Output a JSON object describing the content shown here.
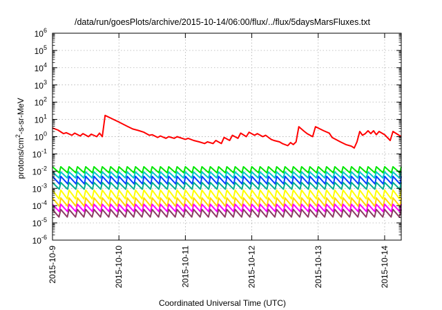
{
  "chart_data": {
    "type": "line",
    "title": "/data/run/goesPlots/archive/2015-10-14/06:00/flux/../flux/5daysMarsFluxes.txt",
    "xlabel": "Coordinated Universal Time (UTC)",
    "ylabel": {
      "prefix": "protons/cm",
      "sup": "2",
      "suffix": "-s-sr-MeV"
    },
    "x_type": "date",
    "xlim": [
      "2015-10-09T00:00",
      "2015-10-14T06:00"
    ],
    "x_ticks": [
      "2015-10-9",
      "2015-10-10",
      "2015-10-11",
      "2015-10-12",
      "2015-10-13",
      "2015-10-14"
    ],
    "y_scale": "log",
    "ylim": [
      1e-06,
      1000000.0
    ],
    "y_ticks": [
      {
        "base": "10",
        "exp": "6"
      },
      {
        "base": "10",
        "exp": "5"
      },
      {
        "base": "10",
        "exp": "4"
      },
      {
        "base": "10",
        "exp": "3"
      },
      {
        "base": "10",
        "exp": "2"
      },
      {
        "base": "10",
        "exp": "1"
      },
      {
        "base": "10",
        "exp": "0"
      },
      {
        "base": "10",
        "exp": "-1"
      },
      {
        "base": "10",
        "exp": "-2"
      },
      {
        "base": "10",
        "exp": "-3"
      },
      {
        "base": "10",
        "exp": "-4"
      },
      {
        "base": "10",
        "exp": "-5"
      },
      {
        "base": "10",
        "exp": "-6"
      }
    ],
    "grid": true,
    "series": [
      {
        "color": "#ff0000",
        "points": [
          [
            "2015-10-09T00:00",
            3.2
          ],
          [
            "2015-10-09T02:00",
            2.4
          ],
          [
            "2015-10-09T04:00",
            1.5
          ],
          [
            "2015-10-09T05:00",
            1.7
          ],
          [
            "2015-10-09T07:00",
            1.2
          ],
          [
            "2015-10-09T08:00",
            1.6
          ],
          [
            "2015-10-09T10:00",
            1.1
          ],
          [
            "2015-10-09T11:00",
            1.5
          ],
          [
            "2015-10-09T13:00",
            1.0
          ],
          [
            "2015-10-09T14:00",
            1.4
          ],
          [
            "2015-10-09T16:00",
            1.0
          ],
          [
            "2015-10-09T17:00",
            1.6
          ],
          [
            "2015-10-09T18:00",
            1.0
          ],
          [
            "2015-10-09T19:00",
            17.0
          ],
          [
            "2015-10-09T21:00",
            12.0
          ],
          [
            "2015-10-10T00:00",
            7.0
          ],
          [
            "2015-10-10T03:00",
            4.0
          ],
          [
            "2015-10-10T05:00",
            2.8
          ],
          [
            "2015-10-10T07:00",
            2.3
          ],
          [
            "2015-10-10T09:00",
            1.8
          ],
          [
            "2015-10-10T11:00",
            1.2
          ],
          [
            "2015-10-10T12:00",
            1.3
          ],
          [
            "2015-10-10T14:00",
            0.9
          ],
          [
            "2015-10-10T15:00",
            1.1
          ],
          [
            "2015-10-10T17:00",
            0.8
          ],
          [
            "2015-10-10T18:00",
            1.0
          ],
          [
            "2015-10-10T20:00",
            0.8
          ],
          [
            "2015-10-10T21:00",
            1.0
          ],
          [
            "2015-10-11T00:00",
            0.7
          ],
          [
            "2015-10-11T01:00",
            0.8
          ],
          [
            "2015-10-11T03:00",
            0.6
          ],
          [
            "2015-10-11T05:00",
            0.5
          ],
          [
            "2015-10-11T07:00",
            0.4
          ],
          [
            "2015-10-11T08:00",
            0.5
          ],
          [
            "2015-10-11T10:00",
            0.4
          ],
          [
            "2015-10-11T11:00",
            0.6
          ],
          [
            "2015-10-11T13:00",
            0.4
          ],
          [
            "2015-10-11T14:00",
            0.9
          ],
          [
            "2015-10-11T16:00",
            0.6
          ],
          [
            "2015-10-11T17:00",
            1.2
          ],
          [
            "2015-10-11T19:00",
            0.8
          ],
          [
            "2015-10-11T20:00",
            1.6
          ],
          [
            "2015-10-11T22:00",
            1.0
          ],
          [
            "2015-10-11T23:00",
            1.8
          ],
          [
            "2015-10-12T01:00",
            1.2
          ],
          [
            "2015-10-12T02:00",
            1.5
          ],
          [
            "2015-10-12T04:00",
            1.0
          ],
          [
            "2015-10-12T05:00",
            1.2
          ],
          [
            "2015-10-12T07:00",
            0.7
          ],
          [
            "2015-10-12T08:00",
            0.6
          ],
          [
            "2015-10-12T10:00",
            0.5
          ],
          [
            "2015-10-12T11:00",
            0.4
          ],
          [
            "2015-10-12T13:00",
            0.3
          ],
          [
            "2015-10-12T14:00",
            0.45
          ],
          [
            "2015-10-12T15:00",
            0.35
          ],
          [
            "2015-10-12T16:00",
            0.5
          ],
          [
            "2015-10-12T17:00",
            3.8
          ],
          [
            "2015-10-12T19:00",
            2.0
          ],
          [
            "2015-10-12T20:00",
            1.5
          ],
          [
            "2015-10-12T22:00",
            1.0
          ],
          [
            "2015-10-12T23:00",
            3.8
          ],
          [
            "2015-10-13T02:00",
            2.2
          ],
          [
            "2015-10-13T04:00",
            1.6
          ],
          [
            "2015-10-13T05:00",
            0.9
          ],
          [
            "2015-10-13T08:00",
            0.5
          ],
          [
            "2015-10-13T10:00",
            0.35
          ],
          [
            "2015-10-13T12:00",
            0.28
          ],
          [
            "2015-10-13T13:00",
            0.22
          ],
          [
            "2015-10-13T14:00",
            0.5
          ],
          [
            "2015-10-13T15:00",
            2.0
          ],
          [
            "2015-10-13T16:00",
            1.2
          ],
          [
            "2015-10-13T17:00",
            1.5
          ],
          [
            "2015-10-13T18:00",
            2.2
          ],
          [
            "2015-10-13T19:00",
            1.5
          ],
          [
            "2015-10-13T20:00",
            2.2
          ],
          [
            "2015-10-13T21:00",
            1.3
          ],
          [
            "2015-10-13T22:00",
            2.0
          ],
          [
            "2015-10-14T00:00",
            1.3
          ],
          [
            "2015-10-14T02:00",
            0.6
          ],
          [
            "2015-10-14T03:00",
            2.0
          ],
          [
            "2015-10-14T06:00",
            1.0
          ]
        ]
      },
      {
        "color": "#00e600",
        "peak": 0.018,
        "trough": 0.008
      },
      {
        "color": "#00c8c8",
        "peak": 0.009,
        "trough": 0.004
      },
      {
        "color": "#0040ff",
        "peak": 0.005,
        "trough": 0.0018
      },
      {
        "color": "#00b090",
        "peak": 0.0022,
        "trough": 0.0009
      },
      {
        "color": "#ffff00",
        "peak": 0.0008,
        "trough": 0.00025
      },
      {
        "color": "#ffd700",
        "peak": 0.00028,
        "trough": 9e-05
      },
      {
        "color": "#ff00ff",
        "peak": 0.00012,
        "trough": 4.5e-05
      },
      {
        "color": "#8c3c64",
        "peak": 6e-05,
        "trough": 2.2e-05
      }
    ],
    "oscillation_period_hours": 3
  },
  "colors": {
    "background": "#ffffff",
    "axis": "#000000",
    "grid": "#a0a0a0"
  }
}
